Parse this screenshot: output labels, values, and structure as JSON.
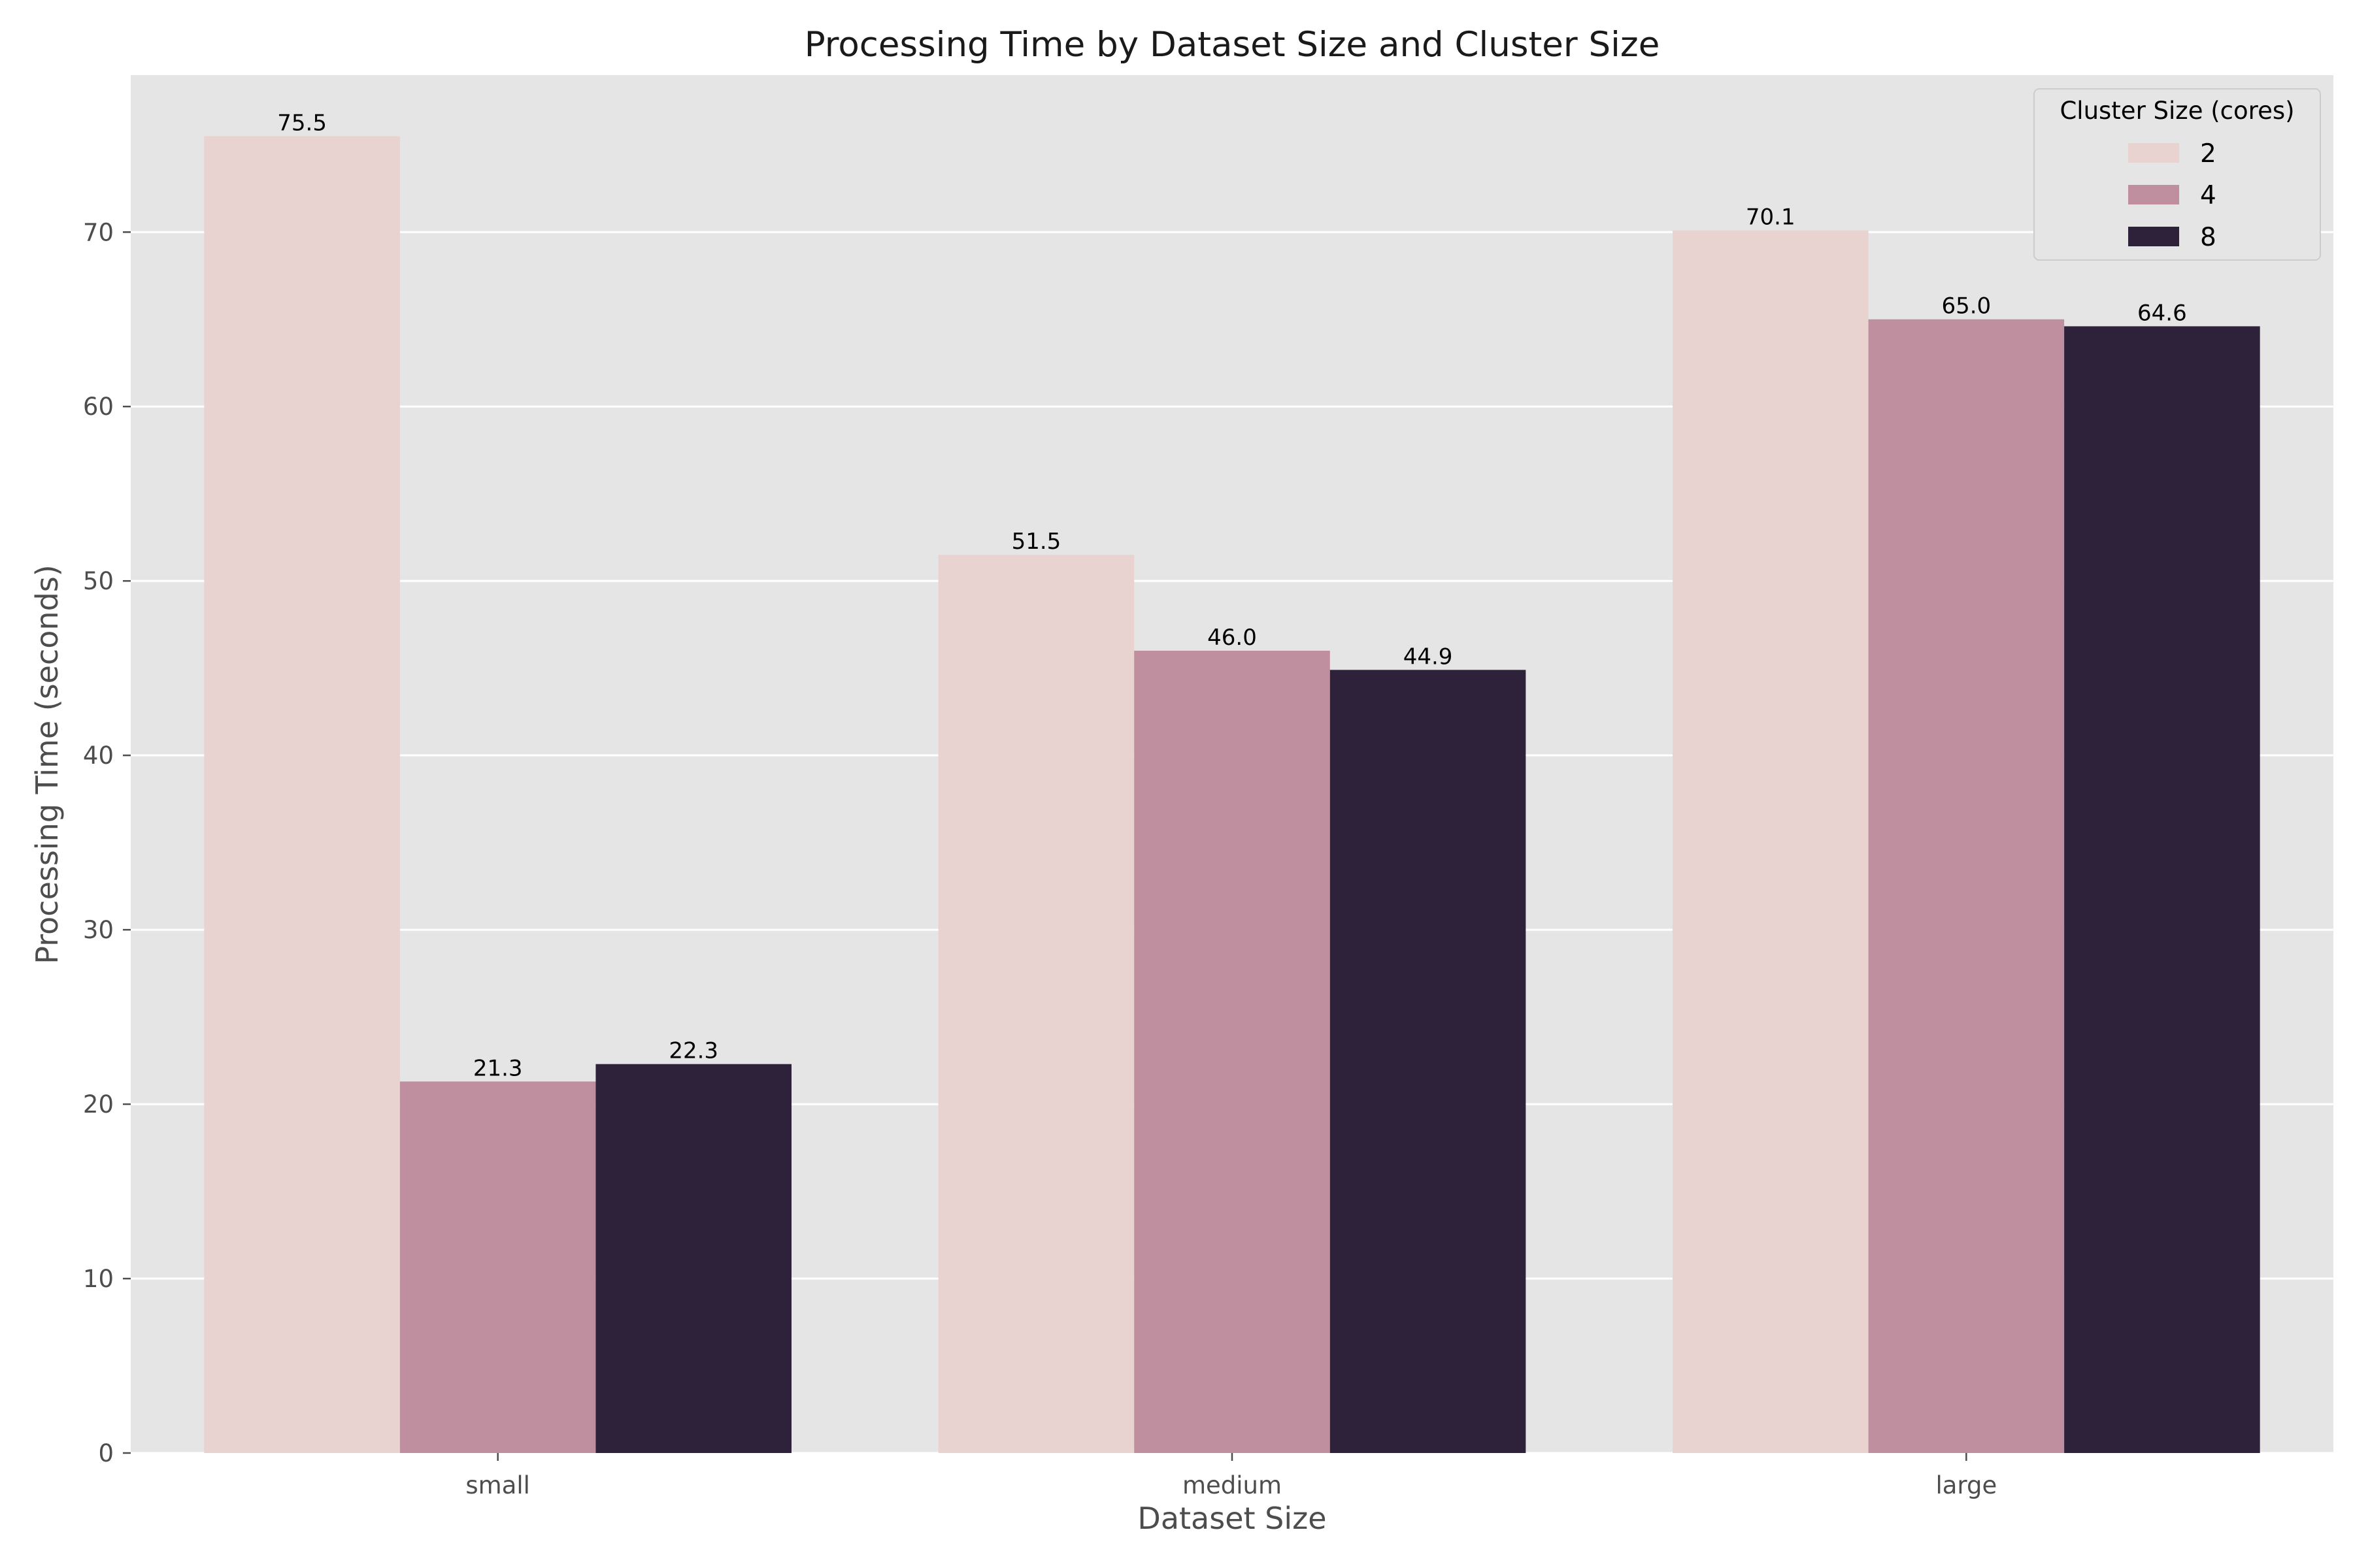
{
  "chart_data": {
    "type": "bar",
    "title": "Processing Time by Dataset Size and Cluster Size",
    "xlabel": "Dataset Size",
    "ylabel": "Processing Time (seconds)",
    "categories": [
      "small",
      "medium",
      "large"
    ],
    "ylim": [
      0,
      79
    ],
    "yticks": [
      0,
      10,
      20,
      30,
      40,
      50,
      60,
      70
    ],
    "grid": true,
    "legend": {
      "title": "Cluster Size (cores)",
      "placement": "top-right"
    },
    "series": [
      {
        "name": "2",
        "color": "#e8d3d0",
        "values": [
          75.5,
          51.5,
          70.1
        ],
        "labels": [
          "75.5",
          "51.5",
          "70.1"
        ]
      },
      {
        "name": "4",
        "color": "#c08f9f",
        "values": [
          21.3,
          46.0,
          65.0
        ],
        "labels": [
          "21.3",
          "46.0",
          "65.0"
        ]
      },
      {
        "name": "8",
        "color": "#2e213a",
        "values": [
          22.3,
          44.9,
          64.6
        ],
        "labels": [
          "22.3",
          "44.9",
          "64.6"
        ]
      }
    ]
  }
}
